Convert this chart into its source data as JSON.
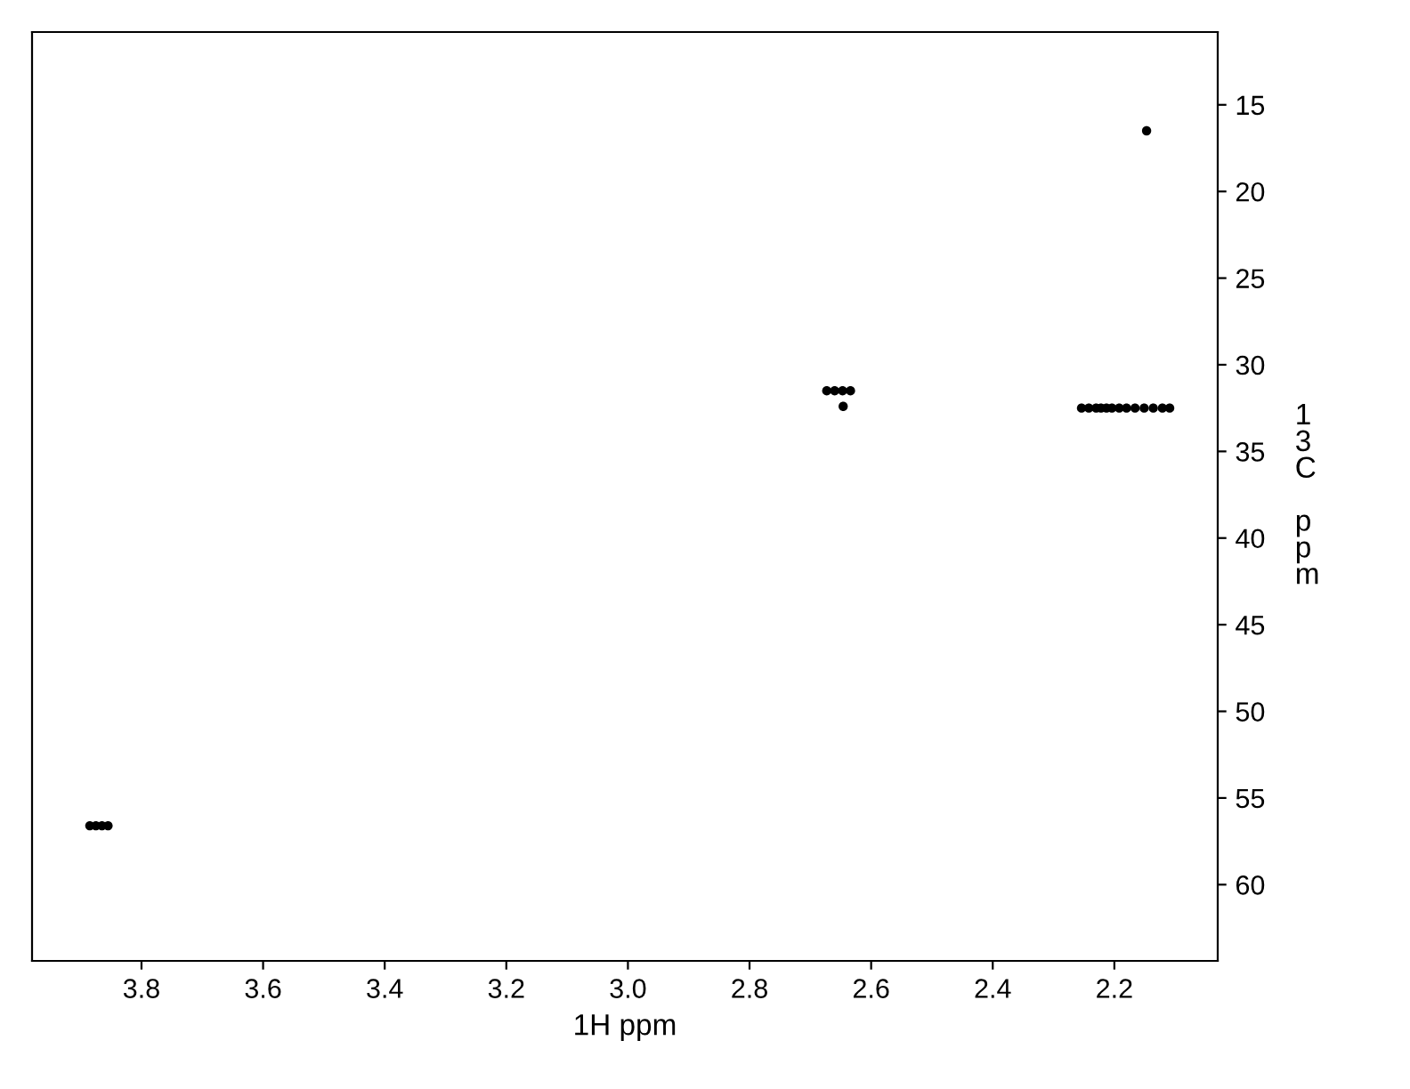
{
  "chart_data": {
    "type": "scatter",
    "xlabel": "1H ppm",
    "ylabel": "13C ppm",
    "marker": "circle",
    "grid": false,
    "xlim": [
      3.98,
      2.03
    ],
    "xticks": [
      3.8,
      3.6,
      3.4,
      3.2,
      {
        "value": 3.0,
        "label": "3.0"
      },
      2.8,
      2.6,
      2.4,
      2.2
    ],
    "ylim": [
      64.4,
      10.8
    ],
    "yticks": [
      15,
      20,
      25,
      30,
      35,
      40,
      45,
      50,
      55,
      60
    ],
    "series": [
      {
        "color": "#000000",
        "x": [
          3.885,
          3.875,
          3.865,
          3.855,
          2.673,
          2.66,
          2.647,
          2.634,
          2.646,
          2.147,
          2.254,
          2.242,
          2.23,
          2.222,
          2.213,
          2.204,
          2.192,
          2.18,
          2.166,
          2.151,
          2.136,
          2.121,
          2.109
        ],
        "values": [
          56.6,
          56.6,
          56.6,
          56.6,
          31.5,
          31.5,
          31.5,
          31.5,
          32.4,
          16.5,
          32.5,
          32.5,
          32.5,
          32.5,
          32.5,
          32.5,
          32.5,
          32.5,
          32.5,
          32.5,
          32.5,
          32.5,
          32.5
        ]
      }
    ]
  }
}
